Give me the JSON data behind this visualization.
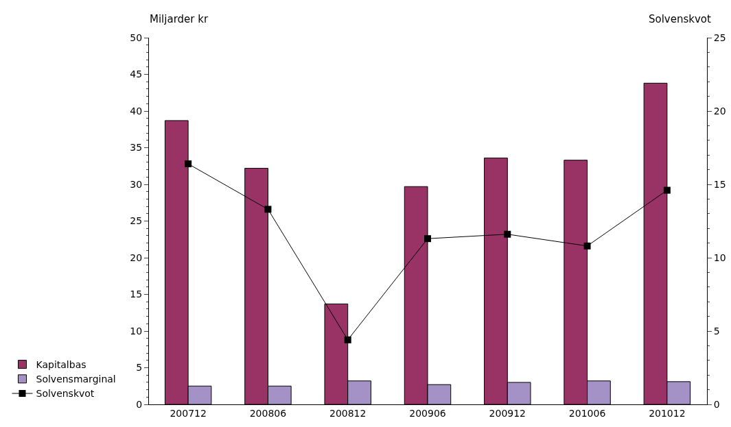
{
  "chart_data": {
    "type": "bar",
    "categories": [
      "200712",
      "200806",
      "200812",
      "200906",
      "200912",
      "201006",
      "201012"
    ],
    "series": [
      {
        "name": "Kapitalbas",
        "color": "#993366",
        "values": [
          38.7,
          32.2,
          13.7,
          29.7,
          33.6,
          33.3,
          43.8
        ]
      },
      {
        "name": "Solvensmarginal",
        "color": "#a491c6",
        "values": [
          2.5,
          2.5,
          3.2,
          2.7,
          3.0,
          3.2,
          3.1
        ]
      },
      {
        "name": "Solvenskvot",
        "type": "line",
        "axis": "y2",
        "color": "#000000",
        "marker": "square",
        "line_style": "solid",
        "values": [
          16.4,
          13.3,
          4.4,
          11.3,
          11.6,
          10.8,
          14.6
        ]
      }
    ],
    "ylabel": "Miljarder kr",
    "y2label": "Solvenskvot",
    "ylim": [
      0,
      50
    ],
    "yticks": [
      0,
      5,
      10,
      15,
      20,
      25,
      30,
      35,
      40,
      45,
      50
    ],
    "y2lim": [
      0,
      25
    ],
    "y2ticks": [
      0,
      5,
      10,
      15,
      20,
      25
    ],
    "grid": false,
    "legend": "bottom left"
  }
}
